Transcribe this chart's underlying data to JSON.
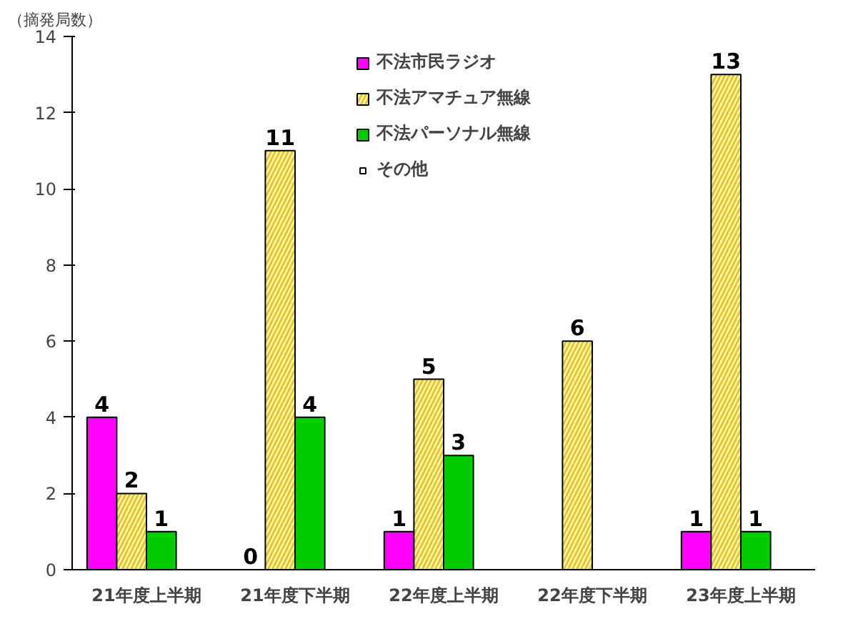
{
  "chart_data": {
    "type": "bar",
    "ylabel": "（摘発局数）",
    "categories": [
      "21年度上半期",
      "21年度下半期",
      "22年度上半期",
      "22年度下半期",
      "23年度上半期"
    ],
    "series": [
      {
        "name": "不法市民ラジオ",
        "color": "#ff00ff",
        "values": [
          4,
          0,
          1,
          null,
          1
        ]
      },
      {
        "name": "不法アマチュア無線",
        "color": "#ffff99",
        "values": [
          2,
          11,
          5,
          6,
          13
        ]
      },
      {
        "name": "不法パーソナル無線",
        "color": "#00cc00",
        "values": [
          1,
          4,
          3,
          null,
          1
        ]
      },
      {
        "name": "その他",
        "color": "#ffffff",
        "values": [
          null,
          null,
          null,
          null,
          null
        ]
      }
    ],
    "ylim": [
      0,
      14
    ],
    "yticks": [
      0,
      2,
      4,
      6,
      8,
      10,
      12,
      14
    ],
    "grid": false,
    "legend": "top",
    "data_labels": true
  }
}
